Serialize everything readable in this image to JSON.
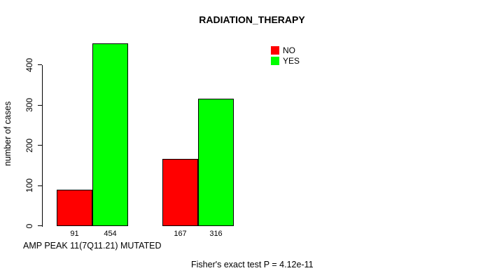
{
  "chart_data": {
    "type": "bar",
    "title": "RADIATION_THERAPY",
    "ylabel": "number of cases",
    "xlabel": "AMP PEAK 11(7Q11.21) MUTATED",
    "categories": [
      "",
      ""
    ],
    "series": [
      {
        "name": "NO",
        "color": "#ff0000",
        "values": [
          91,
          167
        ]
      },
      {
        "name": "YES",
        "color": "#00ff00",
        "values": [
          454,
          316
        ]
      }
    ],
    "bar_value_labels": [
      [
        91,
        454
      ],
      [
        167,
        316
      ]
    ],
    "y_ticks": [
      0,
      100,
      200,
      300,
      400
    ],
    "ylim": [
      0,
      460
    ],
    "grid": false,
    "bar_border_color": "#000000",
    "legend": {
      "position": "top-right",
      "entries": [
        "NO",
        "YES"
      ]
    },
    "annotation": "Fisher's exact test P = 4.12e-11"
  }
}
